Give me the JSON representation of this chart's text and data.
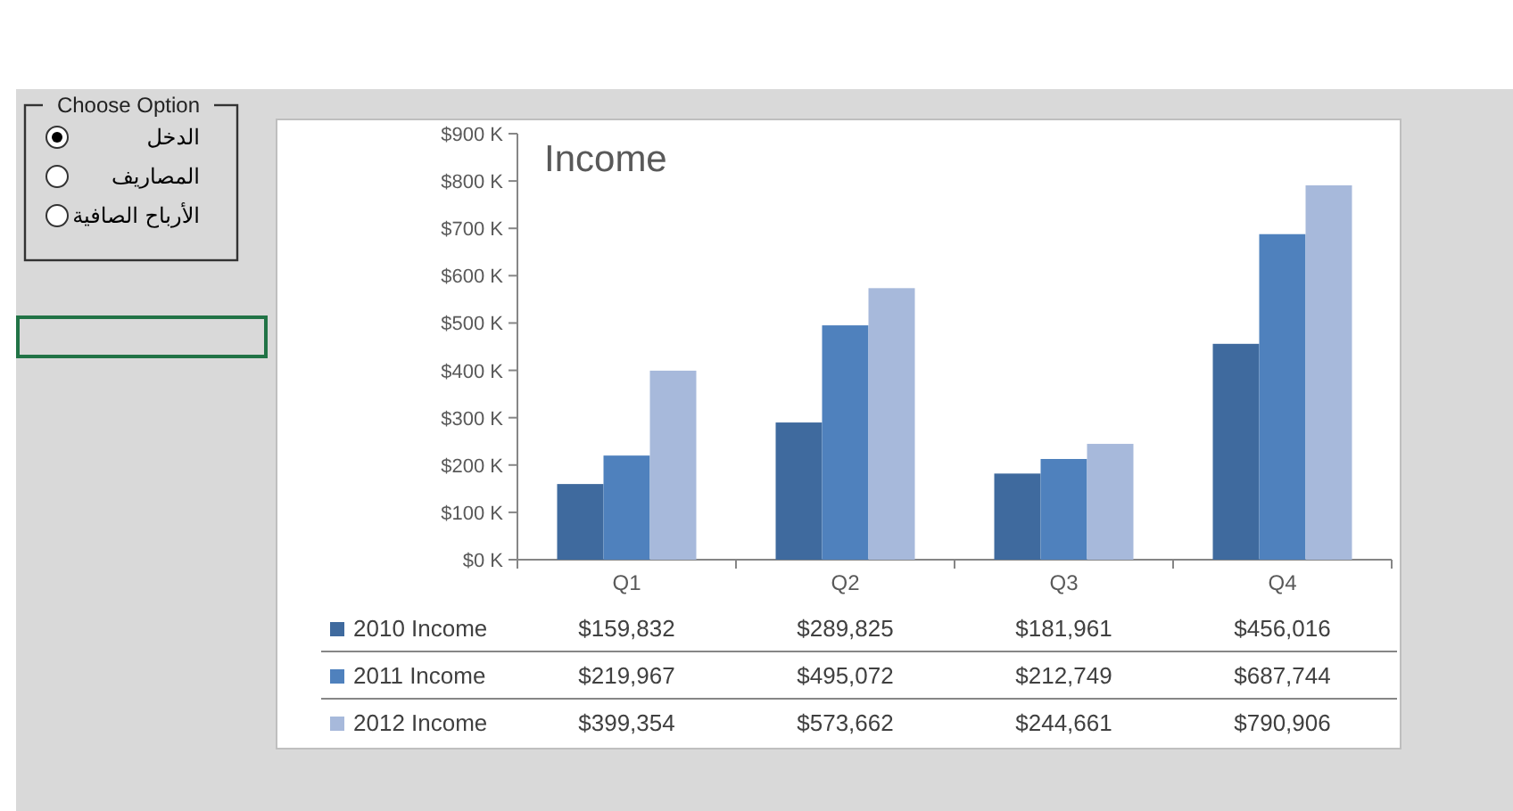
{
  "chart_data": [
    {
      "type": "other",
      "title": "Choose Option",
      "annotations": [
        "الدخل",
        "المصاريف",
        "الأرباح الصافية"
      ]
    },
    {
      "type": "bar",
      "title": "Income",
      "categories": [
        "Q1",
        "Q2",
        "Q3",
        "Q4"
      ],
      "series": [
        {
          "name": "2010 Income",
          "color": "#3f6a9e",
          "values": [
            159832,
            289825,
            181961,
            456016
          ],
          "value_labels": [
            "$159,832",
            "$289,825",
            "$181,961",
            "$456,016"
          ]
        },
        {
          "name": "2011 Income",
          "color": "#4f81bd",
          "values": [
            219967,
            495072,
            212749,
            687744
          ],
          "value_labels": [
            "$219,967",
            "$495,072",
            "$212,749",
            "$687,744"
          ]
        },
        {
          "name": "2012 Income",
          "color": "#a7b9db",
          "values": [
            399354,
            573662,
            244661,
            790906
          ],
          "value_labels": [
            "$399,354",
            "$573,662",
            "$244,661",
            "$790,906"
          ]
        }
      ],
      "ylim": [
        0,
        900000
      ],
      "yticks": [
        {
          "value": 0,
          "label": "$0 K"
        },
        {
          "value": 100000,
          "label": "$100 K"
        },
        {
          "value": 200000,
          "label": "$200 K"
        },
        {
          "value": 300000,
          "label": "$300 K"
        },
        {
          "value": 400000,
          "label": "$400 K"
        },
        {
          "value": 500000,
          "label": "$500 K"
        },
        {
          "value": 600000,
          "label": "$600 K"
        },
        {
          "value": 700000,
          "label": "$700 K"
        },
        {
          "value": 800000,
          "label": "$800 K"
        },
        {
          "value": 900000,
          "label": "$900 K"
        }
      ],
      "legend": "bottom"
    }
  ]
}
